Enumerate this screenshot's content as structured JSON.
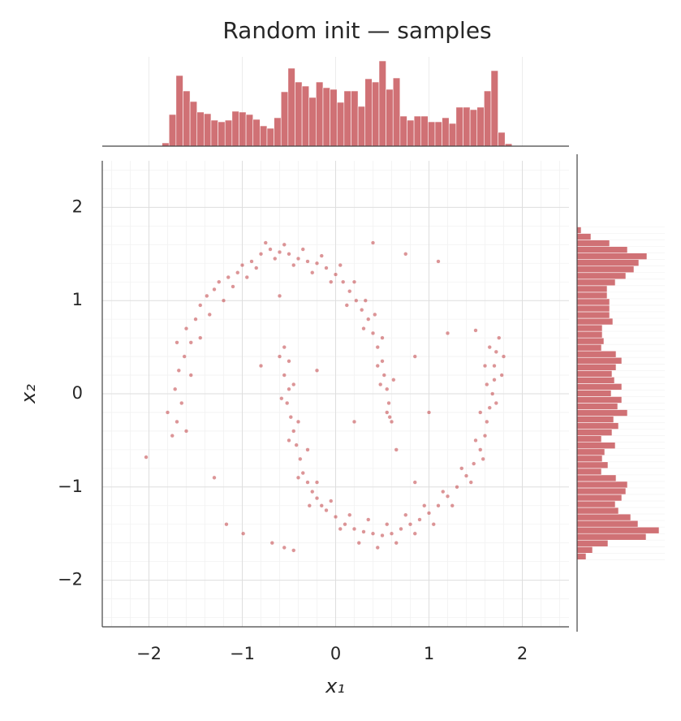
{
  "chart_data": {
    "type": "jointplot",
    "title": "Random init — samples",
    "xlabel": "x₁",
    "ylabel": "x₂",
    "color": "#c44e52",
    "grid": true,
    "xlim": [
      -2.5,
      2.5
    ],
    "ylim": [
      -2.5,
      2.5
    ],
    "xticks": [
      {
        "value": -2,
        "label": "−2"
      },
      {
        "value": -1,
        "label": "−1"
      },
      0,
      1,
      2
    ],
    "yticks": [
      {
        "value": -2,
        "label": "−2"
      },
      {
        "value": -1,
        "label": "−1"
      },
      0,
      1,
      2
    ],
    "xminorticks": [
      -2.4,
      -2.2,
      -1.8,
      -1.6,
      -1.4,
      -1.2,
      -0.8,
      -0.6,
      -0.4,
      -0.2,
      0.2,
      0.4,
      0.6,
      0.8,
      1.2,
      1.4,
      1.6,
      1.8,
      2.2,
      2.4
    ],
    "yminorticks": [
      -2.4,
      -2.2,
      -1.8,
      -1.6,
      -1.4,
      -1.2,
      -0.8,
      -0.6,
      -0.4,
      -0.2,
      0.2,
      0.4,
      0.6,
      0.8,
      1.2,
      1.4,
      1.6,
      1.8,
      2.2,
      2.4
    ],
    "x": [
      -1.75,
      -1.7,
      -1.65,
      -1.72,
      -1.68,
      -1.62,
      -1.55,
      -1.6,
      -1.5,
      -1.45,
      -1.38,
      -1.3,
      -1.25,
      -1.15,
      -1.05,
      -1.0,
      -0.9,
      -0.8,
      -0.7,
      -0.6,
      -0.5,
      -0.4,
      -0.3,
      -0.2,
      -0.1,
      0.0,
      0.08,
      0.15,
      0.22,
      0.28,
      0.35,
      0.4,
      0.45,
      0.5,
      0.52,
      0.55,
      0.57,
      0.58,
      0.6,
      -1.8,
      -1.6,
      -1.55,
      -1.7,
      -1.45,
      -1.35,
      -1.2,
      -1.1,
      -0.95,
      -0.85,
      -0.75,
      -0.65,
      -0.55,
      -0.45,
      -0.35,
      -0.25,
      -0.15,
      -0.05,
      0.05,
      0.12,
      0.2,
      0.3,
      0.32,
      0.42,
      0.45,
      0.5,
      0.55,
      0.48,
      0.62,
      -0.55,
      -0.5,
      -0.55,
      -0.5,
      -0.52,
      -0.48,
      -0.45,
      -0.42,
      -0.38,
      -0.35,
      -0.3,
      -0.25,
      -0.2,
      -0.15,
      -0.1,
      0.0,
      0.1,
      0.2,
      0.3,
      0.4,
      0.5,
      0.6,
      0.7,
      0.8,
      0.9,
      1.0,
      1.1,
      1.2,
      1.3,
      1.4,
      1.48,
      1.55,
      1.6,
      1.62,
      1.65,
      1.68,
      1.7,
      1.7,
      1.72,
      1.75,
      -0.6,
      -0.45,
      -0.58,
      -0.4,
      -0.5,
      -0.3,
      -0.4,
      -0.2,
      -0.28,
      -0.05,
      0.05,
      0.15,
      0.25,
      0.35,
      0.45,
      0.55,
      0.65,
      0.75,
      0.85,
      0.95,
      1.05,
      1.15,
      1.25,
      1.35,
      1.45,
      1.5,
      1.58,
      1.55,
      1.62,
      1.78,
      1.8,
      1.65,
      1.72,
      1.6,
      -2.03,
      -0.99,
      -1.17,
      -0.68,
      -0.45,
      -0.55,
      1.1,
      0.75,
      1.5,
      0.4,
      1.2,
      0.85,
      -0.6,
      -0.2,
      0.2,
      0.65,
      1.0,
      -1.3,
      -0.8,
      0.85
    ],
    "y": [
      -0.45,
      -0.3,
      -0.1,
      0.05,
      0.25,
      0.4,
      0.55,
      0.7,
      0.8,
      0.95,
      1.05,
      1.12,
      1.2,
      1.25,
      1.3,
      1.38,
      1.42,
      1.5,
      1.55,
      1.52,
      1.5,
      1.45,
      1.42,
      1.4,
      1.35,
      1.28,
      1.2,
      1.1,
      1.0,
      0.9,
      0.8,
      0.65,
      0.5,
      0.35,
      0.2,
      0.05,
      -0.1,
      -0.25,
      -0.3,
      -0.2,
      -0.4,
      0.2,
      0.55,
      0.6,
      0.85,
      1.0,
      1.15,
      1.25,
      1.35,
      1.62,
      1.45,
      1.6,
      1.38,
      1.55,
      1.3,
      1.48,
      1.2,
      1.38,
      0.95,
      1.2,
      0.7,
      1.0,
      0.85,
      0.3,
      0.6,
      -0.2,
      0.1,
      0.15,
      0.5,
      0.35,
      0.2,
      0.05,
      -0.1,
      -0.25,
      -0.4,
      -0.55,
      -0.7,
      -0.85,
      -0.95,
      -1.05,
      -1.12,
      -1.2,
      -1.25,
      -1.32,
      -1.4,
      -1.45,
      -1.48,
      -1.5,
      -1.52,
      -1.5,
      -1.45,
      -1.4,
      -1.35,
      -1.28,
      -1.2,
      -1.1,
      -1.0,
      -0.88,
      -0.75,
      -0.6,
      -0.45,
      -0.3,
      -0.15,
      0.0,
      0.15,
      0.3,
      0.45,
      0.6,
      0.4,
      0.1,
      -0.05,
      -0.3,
      -0.5,
      -0.6,
      -0.9,
      -0.95,
      -1.2,
      -1.15,
      -1.45,
      -1.3,
      -1.6,
      -1.35,
      -1.65,
      -1.4,
      -1.6,
      -1.3,
      -1.5,
      -1.2,
      -1.4,
      -1.05,
      -1.2,
      -0.8,
      -0.95,
      -0.5,
      -0.7,
      -0.2,
      0.1,
      0.2,
      0.4,
      0.5,
      -0.1,
      0.3,
      -0.68,
      -1.5,
      -1.4,
      -1.6,
      -1.68,
      -1.65,
      1.42,
      1.5,
      0.68,
      1.62,
      0.65,
      0.4,
      1.05,
      0.25,
      -0.3,
      -0.6,
      -0.2,
      -0.9,
      0.3,
      -0.95
    ],
    "x_hist": {
      "bins": [
        -1.86,
        -1.785,
        -1.71,
        -1.635,
        -1.56,
        -1.485,
        -1.41,
        -1.335,
        -1.26,
        -1.185,
        -1.11,
        -1.035,
        -0.96,
        -0.885,
        -0.81,
        -0.735,
        -0.66,
        -0.585,
        -0.51,
        -0.435,
        -0.36,
        -0.285,
        -0.21,
        -0.135,
        -0.06,
        0.015,
        0.09,
        0.165,
        0.24,
        0.315,
        0.39,
        0.465,
        0.54,
        0.615,
        0.69,
        0.765,
        0.84,
        0.915,
        0.99,
        1.065,
        1.14,
        1.215,
        1.29,
        1.365,
        1.44,
        1.515,
        1.59,
        1.665,
        1.74,
        1.815,
        1.89
      ],
      "counts": [
        4,
        39,
        87,
        68,
        55,
        42,
        40,
        32,
        30,
        32,
        43,
        42,
        39,
        33,
        25,
        22,
        35,
        67,
        96,
        79,
        74,
        60,
        79,
        72,
        70,
        54,
        68,
        68,
        49,
        83,
        79,
        105,
        70,
        84,
        37,
        32,
        37,
        37,
        30,
        30,
        35,
        28,
        48,
        48,
        45,
        48,
        68,
        93,
        17,
        3
      ]
    },
    "y_hist": {
      "bins": [
        -1.78,
        -1.71,
        -1.64,
        -1.57,
        -1.5,
        -1.43,
        -1.36,
        -1.29,
        -1.22,
        -1.15,
        -1.08,
        -1.01,
        -0.94,
        -0.87,
        -0.8,
        -0.73,
        -0.66,
        -0.59,
        -0.52,
        -0.45,
        -0.38,
        -0.31,
        -0.24,
        -0.17,
        -0.1,
        -0.03,
        0.04,
        0.11,
        0.18,
        0.25,
        0.32,
        0.39,
        0.46,
        0.53,
        0.6,
        0.67,
        0.74,
        0.81,
        0.88,
        0.95,
        1.02,
        1.09,
        1.16,
        1.23,
        1.3,
        1.37,
        1.44,
        1.51,
        1.58,
        1.65,
        1.72,
        1.79
      ],
      "counts": [
        11,
        19,
        38,
        85,
        101,
        75,
        66,
        51,
        47,
        55,
        60,
        62,
        48,
        30,
        38,
        31,
        34,
        47,
        30,
        43,
        51,
        45,
        62,
        50,
        55,
        42,
        55,
        46,
        43,
        48,
        55,
        48,
        30,
        33,
        31,
        31,
        44,
        40,
        40,
        40,
        37,
        37,
        47,
        60,
        70,
        76,
        86,
        62,
        40,
        17,
        5
      ]
    }
  }
}
